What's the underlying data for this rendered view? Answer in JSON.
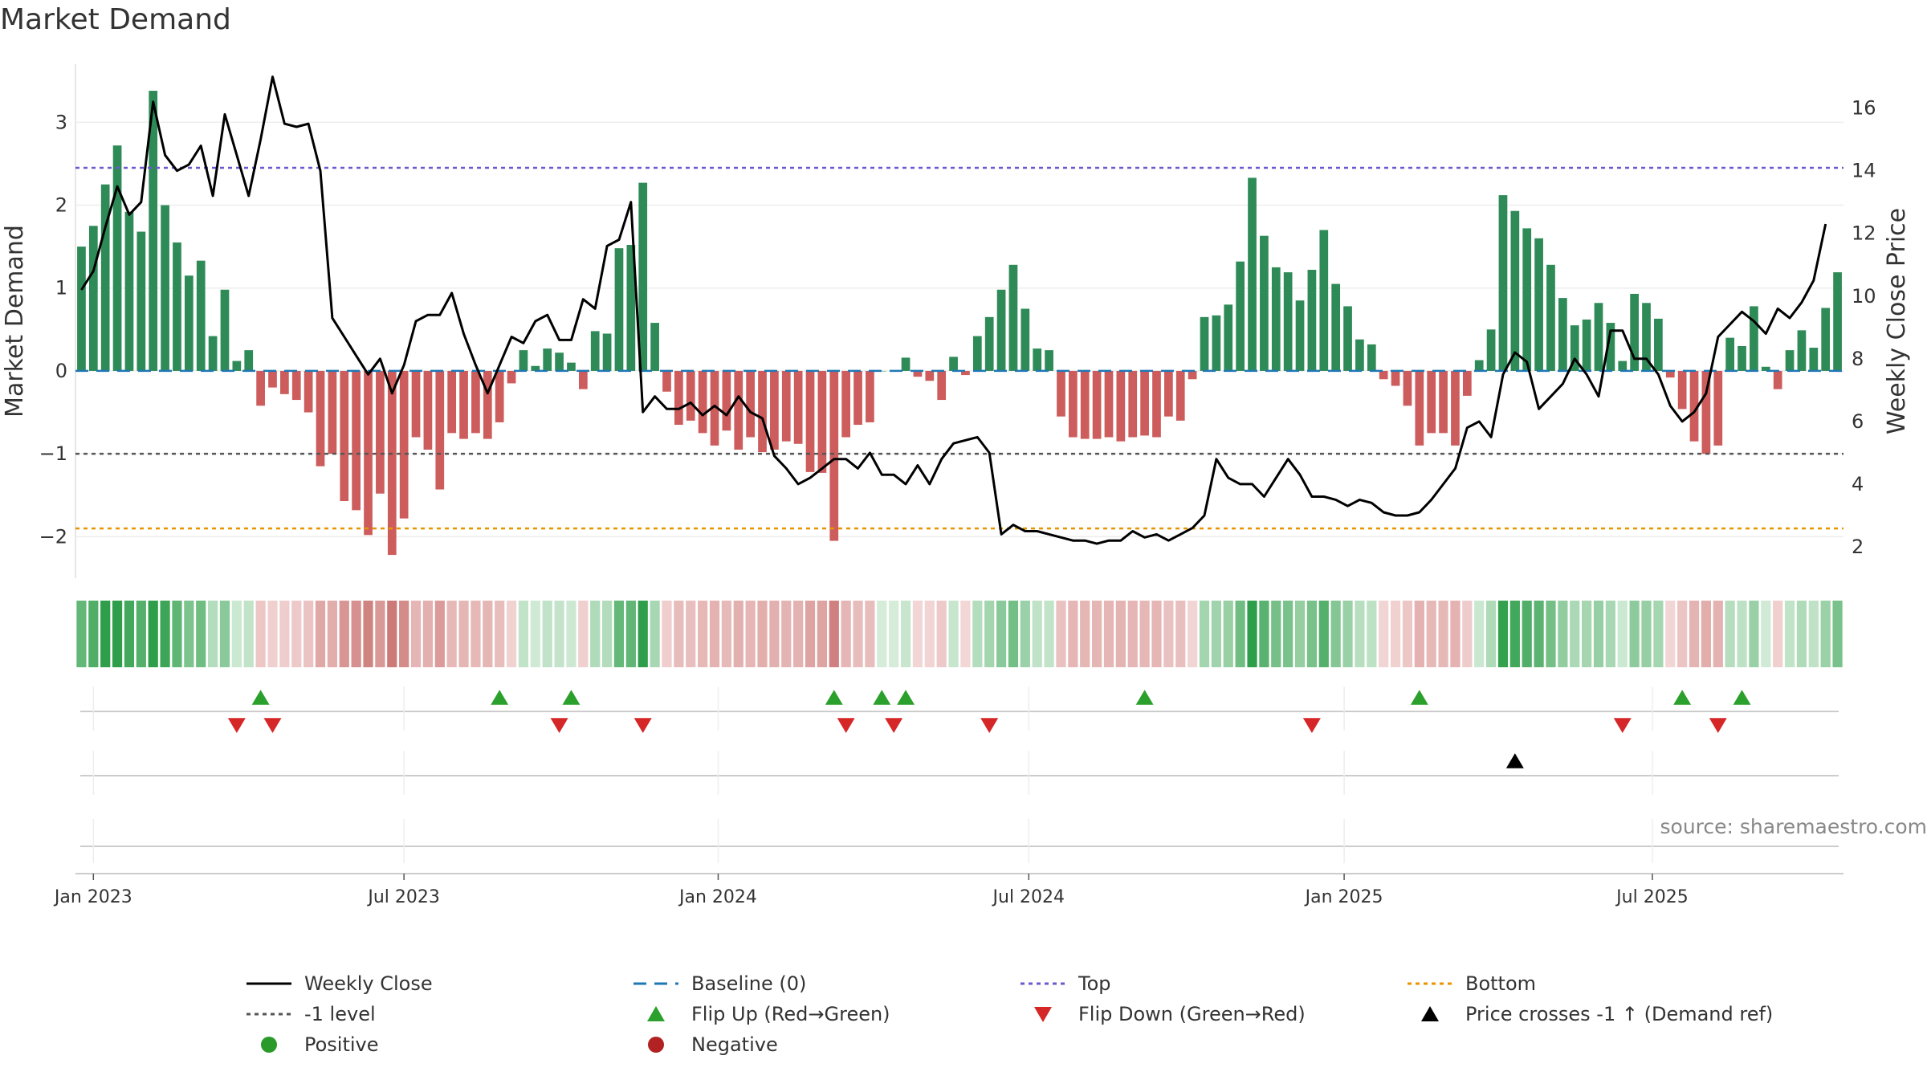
{
  "chart_data": {
    "type": "bar",
    "title": "Market Demand",
    "ylabel": "Market Demand",
    "y2label": "Weekly Close Price",
    "ylim": [
      -2.5,
      3.7
    ],
    "y2lim": [
      1,
      17.4
    ],
    "yticks": [
      -2,
      -1,
      0,
      1,
      2,
      3
    ],
    "y2ticks": [
      2,
      4,
      6,
      8,
      10,
      12,
      14,
      16
    ],
    "levels": {
      "top": 2.45,
      "minus_one": -1,
      "bottom": -1.9
    },
    "xticks": [
      {
        "label": "Jan 2023",
        "week": 1
      },
      {
        "label": "Jul 2023",
        "week": 27
      },
      {
        "label": "Jan 2024",
        "week": 53.3
      },
      {
        "label": "Jul 2024",
        "week": 79.3
      },
      {
        "label": "Jan 2025",
        "week": 105.7
      },
      {
        "label": "Jul 2025",
        "week": 131.5
      }
    ],
    "demand": [
      1.5,
      1.75,
      2.25,
      2.72,
      1.92,
      1.68,
      3.38,
      2.0,
      1.55,
      1.15,
      1.33,
      0.42,
      0.98,
      0.12,
      0.25,
      -0.42,
      -0.2,
      -0.28,
      -0.35,
      -0.5,
      -1.15,
      -1.0,
      -1.57,
      -1.68,
      -1.98,
      -1.48,
      -2.22,
      -1.78,
      -0.8,
      -0.95,
      -1.43,
      -0.75,
      -0.82,
      -0.75,
      -0.82,
      -0.62,
      -0.15,
      0.25,
      0.06,
      0.27,
      0.22,
      0.1,
      -0.22,
      0.48,
      0.45,
      1.48,
      1.52,
      2.27,
      0.58,
      -0.25,
      -0.65,
      -0.6,
      -0.75,
      -0.9,
      -0.72,
      -0.95,
      -0.8,
      -0.98,
      -0.95,
      -0.85,
      -0.88,
      -1.22,
      -1.23,
      -2.05,
      -0.8,
      -0.65,
      -0.62,
      0.0,
      0.0,
      0.16,
      -0.07,
      -0.12,
      -0.35,
      0.17,
      -0.05,
      0.42,
      0.65,
      0.98,
      1.28,
      0.75,
      0.27,
      0.25,
      -0.55,
      -0.8,
      -0.82,
      -0.82,
      -0.8,
      -0.85,
      -0.8,
      -0.78,
      -0.8,
      -0.55,
      -0.6,
      -0.1,
      0.65,
      0.67,
      0.8,
      1.32,
      2.33,
      1.63,
      1.25,
      1.19,
      0.85,
      1.22,
      1.7,
      1.05,
      0.78,
      0.38,
      0.32,
      -0.1,
      -0.18,
      -0.42,
      -0.9,
      -0.75,
      -0.75,
      -0.9,
      -0.3,
      0.13,
      0.5,
      2.12,
      1.93,
      1.72,
      1.6,
      1.28,
      0.88,
      0.55,
      0.62,
      0.82,
      0.58,
      0.12,
      0.93,
      0.82,
      0.63,
      -0.08,
      -0.46,
      -0.85,
      -1.0,
      -0.9,
      0.4,
      0.3,
      0.78,
      0.05,
      -0.22,
      0.25,
      0.49,
      0.28,
      0.76,
      1.19
    ],
    "close": [
      10.2,
      10.8,
      12.2,
      13.5,
      12.6,
      13.0,
      16.2,
      14.5,
      14.0,
      14.2,
      14.8,
      13.2,
      15.8,
      14.5,
      13.2,
      15.0,
      17.0,
      15.5,
      15.4,
      15.5,
      14.0,
      9.3,
      8.7,
      8.1,
      7.5,
      8.0,
      6.9,
      7.8,
      9.2,
      9.4,
      9.4,
      10.1,
      8.8,
      7.8,
      6.9,
      7.8,
      8.7,
      8.5,
      9.2,
      9.4,
      8.6,
      8.6,
      9.9,
      9.6,
      11.6,
      11.8,
      13.0,
      6.3,
      6.8,
      6.4,
      6.4,
      6.6,
      6.2,
      6.5,
      6.2,
      6.8,
      6.3,
      6.1,
      4.9,
      4.5,
      4.0,
      4.2,
      4.5,
      4.8,
      4.8,
      4.5,
      5.0,
      4.3,
      4.3,
      4.0,
      4.6,
      4.0,
      4.8,
      5.3,
      5.4,
      5.5,
      5.0,
      2.4,
      2.7,
      2.5,
      2.5,
      2.4,
      2.3,
      2.2,
      2.2,
      2.1,
      2.2,
      2.2,
      2.5,
      2.3,
      2.4,
      2.2,
      2.4,
      2.6,
      3.0,
      4.8,
      4.2,
      4.0,
      4.0,
      3.6,
      4.2,
      4.8,
      4.3,
      3.6,
      3.6,
      3.5,
      3.3,
      3.5,
      3.4,
      3.1,
      3.0,
      3.0,
      3.1,
      3.5,
      4.0,
      4.5,
      5.8,
      6.0,
      5.5,
      7.5,
      8.2,
      7.9,
      6.4,
      6.8,
      7.2,
      8.0,
      7.5,
      6.8,
      8.9,
      8.9,
      8.0,
      8.0,
      7.5,
      6.5,
      6.0,
      6.3,
      6.9,
      8.7,
      9.1,
      9.5,
      9.2,
      8.8,
      9.6,
      9.3,
      9.8,
      10.5,
      12.3
    ],
    "flip_up_weeks": [
      15,
      35,
      41,
      63,
      67,
      69,
      89,
      112,
      134,
      139
    ],
    "flip_down_weeks": [
      13,
      16,
      40,
      47,
      64,
      68,
      76,
      103,
      129,
      137
    ],
    "price_cross_weeks": [
      120
    ],
    "legend": [
      {
        "label": "Weekly Close",
        "kind": "line-solid",
        "color": "#000000"
      },
      {
        "label": "Baseline (0)",
        "kind": "line-dash",
        "color": "#1f77b4"
      },
      {
        "label": "Top",
        "kind": "line-dot",
        "color": "#6a5acd"
      },
      {
        "label": "Bottom",
        "kind": "line-dot",
        "color": "#e69500"
      },
      {
        "label": "-1 level",
        "kind": "line-dot",
        "color": "#555555"
      },
      {
        "label": "Flip Up (Red→Green)",
        "kind": "tri-up",
        "color": "#2ca02c"
      },
      {
        "label": "Flip Down (Green→Red)",
        "kind": "tri-down",
        "color": "#d62728"
      },
      {
        "label": "Price crosses -1 ↑ (Demand ref)",
        "kind": "tri-up",
        "color": "#000000"
      },
      {
        "label": "Positive",
        "kind": "dot",
        "color": "#2a9a2a"
      },
      {
        "label": "Negative",
        "kind": "dot",
        "color": "#b22222"
      }
    ],
    "colors": {
      "positive_bar": "#2e8b57",
      "negative_bar": "#cd5c5c",
      "close_line": "#000000"
    },
    "source": "source: sharemaestro.com"
  }
}
